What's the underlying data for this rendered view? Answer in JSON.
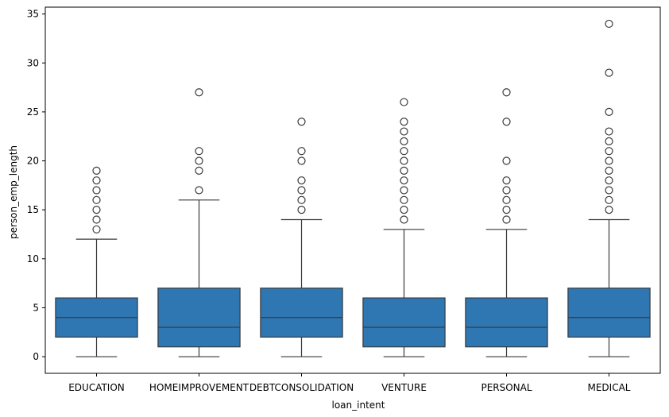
{
  "chart_data": {
    "type": "box",
    "xlabel": "loan_intent",
    "ylabel": "person_emp_length",
    "ylim": [
      -1.7,
      35.7
    ],
    "yticks": [
      0,
      5,
      10,
      15,
      20,
      25,
      30,
      35
    ],
    "categories": [
      "EDUCATION",
      "HOMEIMPROVEMENT",
      "DEBTCONSOLIDATION",
      "VENTURE",
      "PERSONAL",
      "MEDICAL"
    ],
    "box_color": "#2f77b2",
    "edge_color": "#3a3a3a",
    "boxes": [
      {
        "category": "EDUCATION",
        "whisker_low": 0,
        "q1": 2,
        "median": 4,
        "q3": 6,
        "whisker_high": 12,
        "outliers": [
          13,
          14,
          15,
          16,
          17,
          18,
          19
        ]
      },
      {
        "category": "HOMEIMPROVEMENT",
        "whisker_low": 0,
        "q1": 1,
        "median": 3,
        "q3": 7,
        "whisker_high": 16,
        "outliers": [
          17,
          19,
          20,
          21,
          27
        ]
      },
      {
        "category": "DEBTCONSOLIDATION",
        "whisker_low": 0,
        "q1": 2,
        "median": 4,
        "q3": 7,
        "whisker_high": 14,
        "outliers": [
          15,
          16,
          17,
          18,
          20,
          21,
          24
        ]
      },
      {
        "category": "VENTURE",
        "whisker_low": 0,
        "q1": 1,
        "median": 3,
        "q3": 6,
        "whisker_high": 13,
        "outliers": [
          14,
          15,
          16,
          17,
          18,
          19,
          20,
          21,
          22,
          23,
          24,
          26
        ]
      },
      {
        "category": "PERSONAL",
        "whisker_low": 0,
        "q1": 1,
        "median": 3,
        "q3": 6,
        "whisker_high": 13,
        "outliers": [
          14,
          15,
          16,
          17,
          18,
          20,
          24,
          27
        ]
      },
      {
        "category": "MEDICAL",
        "whisker_low": 0,
        "q1": 2,
        "median": 4,
        "q3": 7,
        "whisker_high": 14,
        "outliers": [
          15,
          16,
          17,
          18,
          19,
          20,
          21,
          22,
          23,
          25,
          29,
          34
        ]
      }
    ]
  }
}
